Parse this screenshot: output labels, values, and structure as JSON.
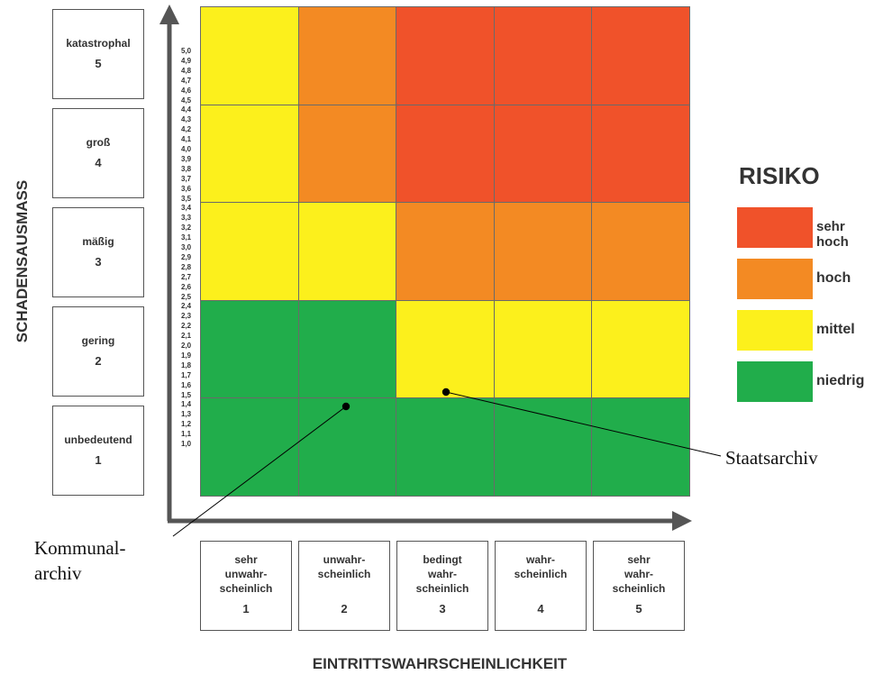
{
  "colors": {
    "sehr_hoch": "#f0522a",
    "hoch": "#f38a23",
    "mittel": "#fcf01c",
    "niedrig": "#21ad4b"
  },
  "y_axis": {
    "title": "SCHADENSAUSMASS",
    "levels": [
      {
        "label": "katastrophal",
        "num": "5"
      },
      {
        "label": "groß",
        "num": "4"
      },
      {
        "label": "mäßig",
        "num": "3"
      },
      {
        "label": "gering",
        "num": "2"
      },
      {
        "label": "unbedeutend",
        "num": "1"
      }
    ],
    "ticks": [
      "5,0",
      "4,9",
      "4,8",
      "4,7",
      "4,6",
      "4,5",
      "4,4",
      "4,3",
      "4,2",
      "4,1",
      "4,0",
      "3,9",
      "3,8",
      "3,7",
      "3,6",
      "3,5",
      "3,4",
      "3,3",
      "3,2",
      "3,1",
      "3,0",
      "2,9",
      "2,8",
      "2,7",
      "2,6",
      "2,5",
      "2,4",
      "2,3",
      "2,2",
      "2,1",
      "2,0",
      "1,9",
      "1,8",
      "1,7",
      "1,6",
      "1,5",
      "1,4",
      "1,3",
      "1,2",
      "1,1",
      "1,0"
    ]
  },
  "x_axis": {
    "title": "EINTRITTSWAHRSCHEINLICHKEIT",
    "levels": [
      {
        "lines": [
          "sehr",
          "unwahr-",
          "scheinlich"
        ],
        "num": "1"
      },
      {
        "lines": [
          "unwahr-",
          "scheinlich"
        ],
        "num": "2"
      },
      {
        "lines": [
          "bedingt",
          "wahr-",
          "scheinlich"
        ],
        "num": "3"
      },
      {
        "lines": [
          "wahr-",
          "scheinlich"
        ],
        "num": "4"
      },
      {
        "lines": [
          "sehr",
          "wahr-",
          "scheinlich"
        ],
        "num": "5"
      }
    ]
  },
  "matrix": [
    [
      "mittel",
      "hoch",
      "sehr_hoch",
      "sehr_hoch",
      "sehr_hoch"
    ],
    [
      "mittel",
      "hoch",
      "sehr_hoch",
      "sehr_hoch",
      "sehr_hoch"
    ],
    [
      "mittel",
      "mittel",
      "hoch",
      "hoch",
      "hoch"
    ],
    [
      "niedrig",
      "niedrig",
      "mittel",
      "mittel",
      "mittel"
    ],
    [
      "niedrig",
      "niedrig",
      "niedrig",
      "niedrig",
      "niedrig"
    ]
  ],
  "legend": {
    "title": "RISIKO",
    "items": [
      {
        "key": "sehr_hoch",
        "label": "sehr hoch"
      },
      {
        "key": "hoch",
        "label": "hoch"
      },
      {
        "key": "mittel",
        "label": "mittel"
      },
      {
        "key": "niedrig",
        "label": "niedrig"
      }
    ]
  },
  "annotations": {
    "staatsarchiv": {
      "label": "Staatsarchiv"
    },
    "kommunalarchiv": {
      "line1": "Kommunal-",
      "line2": "archiv"
    }
  }
}
